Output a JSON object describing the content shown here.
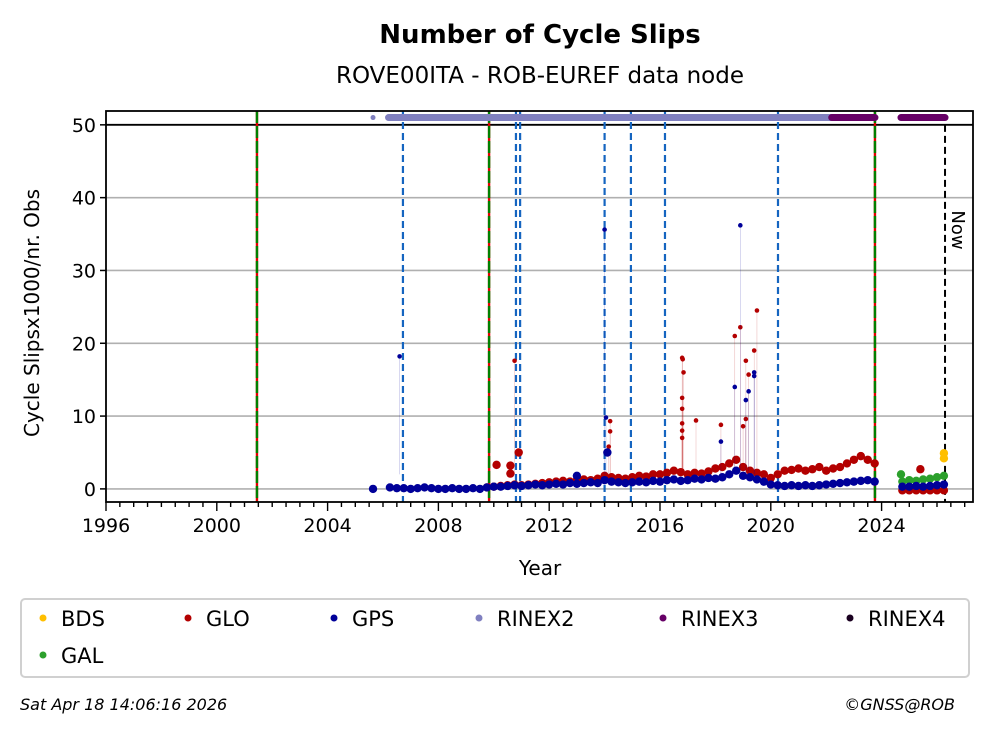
{
  "chart_data": {
    "type": "scatter",
    "title": "Number of Cycle Slips",
    "subtitle": "ROVE00ITA - ROB-EUREF data node",
    "xlabel": "Year",
    "ylabel": "Cycle Slipsx1000/nr. Obs",
    "xlim": [
      1996,
      2027.3
    ],
    "ylim": [
      -1.8,
      51.9
    ],
    "x_ticks": [
      1996,
      2000,
      2004,
      2008,
      2012,
      2016,
      2020,
      2024
    ],
    "y_ticks": [
      0,
      10,
      20,
      30,
      40,
      50
    ],
    "grid": "horizontal",
    "legend_placement": "bottom",
    "colors": {
      "BDS": "#ffbf00",
      "GLO": "#b30000",
      "GPS": "#000099",
      "RINEX2": "#8080c0",
      "RINEX3": "#660066",
      "RINEX4": "#1a0020",
      "GAL": "#2ca02c",
      "event_blue": "#1565c0",
      "event_green": "#008000",
      "event_red": "#e00000",
      "now": "#000000"
    },
    "legend": [
      "BDS",
      "GLO",
      "GPS",
      "RINEX2",
      "RINEX3",
      "RINEX4",
      "GAL"
    ],
    "now_label": "Now",
    "now_year": 2026.29,
    "receiver_antenna_changes": [
      2001.45,
      2009.83,
      2023.76
    ],
    "equipment_events": [
      2006.72,
      2010.8,
      2010.95,
      2014.0,
      2014.95,
      2016.18,
      2020.26
    ],
    "rinex_availability": [
      {
        "name": "RINEX2",
        "level": 51,
        "ranges": [
          [
            2005.64,
            2005.64
          ],
          [
            2006.2,
            2022.2
          ]
        ]
      },
      {
        "name": "RINEX3",
        "level": 51,
        "ranges": [
          [
            2022.2,
            2023.76
          ],
          [
            2024.7,
            2026.29
          ]
        ]
      }
    ],
    "series": [
      {
        "name": "GPS",
        "points": [
          [
            2006.25,
            0.2
          ],
          [
            2006.5,
            0.1
          ],
          [
            2006.75,
            0.1
          ],
          [
            2007.0,
            0.0
          ],
          [
            2007.25,
            0.1
          ],
          [
            2007.5,
            0.2
          ],
          [
            2007.75,
            0.1
          ],
          [
            2008.0,
            0.0
          ],
          [
            2008.25,
            0.0
          ],
          [
            2008.5,
            0.1
          ],
          [
            2008.75,
            0.0
          ],
          [
            2009.0,
            0.0
          ],
          [
            2009.25,
            0.1
          ],
          [
            2009.5,
            0.0
          ],
          [
            2009.75,
            0.2
          ],
          [
            2010.0,
            0.3
          ],
          [
            2010.25,
            0.3
          ],
          [
            2010.5,
            0.4
          ],
          [
            2010.75,
            0.5
          ],
          [
            2011.0,
            0.4
          ],
          [
            2011.25,
            0.5
          ],
          [
            2011.5,
            0.6
          ],
          [
            2011.75,
            0.5
          ],
          [
            2012.0,
            0.6
          ],
          [
            2012.25,
            0.7
          ],
          [
            2012.5,
            0.6
          ],
          [
            2012.75,
            0.8
          ],
          [
            2013.0,
            0.7
          ],
          [
            2013.25,
            0.8
          ],
          [
            2013.5,
            0.9
          ],
          [
            2013.75,
            0.8
          ],
          [
            2014.0,
            1.2
          ],
          [
            2014.25,
            1.0
          ],
          [
            2014.5,
            0.9
          ],
          [
            2014.75,
            0.8
          ],
          [
            2015.0,
            0.9
          ],
          [
            2015.25,
            1.0
          ],
          [
            2015.5,
            0.9
          ],
          [
            2015.75,
            1.1
          ],
          [
            2016.0,
            1.0
          ],
          [
            2016.25,
            1.2
          ],
          [
            2016.5,
            1.3
          ],
          [
            2016.75,
            1.1
          ],
          [
            2017.0,
            1.2
          ],
          [
            2017.25,
            1.4
          ],
          [
            2017.5,
            1.3
          ],
          [
            2017.75,
            1.5
          ],
          [
            2018.0,
            1.4
          ],
          [
            2018.25,
            1.6
          ],
          [
            2018.5,
            2.0
          ],
          [
            2018.75,
            2.5
          ],
          [
            2019.0,
            1.8
          ],
          [
            2019.25,
            1.6
          ],
          [
            2019.5,
            1.3
          ],
          [
            2019.75,
            1.0
          ],
          [
            2020.0,
            0.6
          ],
          [
            2020.25,
            0.5
          ],
          [
            2020.5,
            0.4
          ],
          [
            2020.75,
            0.5
          ],
          [
            2021.0,
            0.4
          ],
          [
            2021.25,
            0.5
          ],
          [
            2021.5,
            0.4
          ],
          [
            2021.75,
            0.5
          ],
          [
            2022.0,
            0.6
          ],
          [
            2022.25,
            0.7
          ],
          [
            2022.5,
            0.8
          ],
          [
            2022.75,
            0.9
          ],
          [
            2023.0,
            1.0
          ],
          [
            2023.25,
            1.1
          ],
          [
            2023.5,
            1.2
          ],
          [
            2023.75,
            1.0
          ],
          [
            2024.75,
            0.3
          ],
          [
            2025.0,
            0.3
          ],
          [
            2025.25,
            0.4
          ],
          [
            2025.5,
            0.3
          ],
          [
            2025.75,
            0.4
          ],
          [
            2026.0,
            0.5
          ],
          [
            2026.25,
            0.6
          ],
          [
            2005.64,
            0.0
          ],
          [
            2006.6,
            18.2
          ],
          [
            2013.0,
            1.8
          ],
          [
            2014.0,
            35.6
          ],
          [
            2014.05,
            9.8
          ],
          [
            2014.1,
            5.0
          ],
          [
            2018.2,
            6.5
          ],
          [
            2018.7,
            14.0
          ],
          [
            2018.9,
            36.2
          ],
          [
            2019.1,
            12.2
          ],
          [
            2019.2,
            13.4
          ],
          [
            2019.4,
            16.0
          ],
          [
            2019.4,
            15.5
          ]
        ]
      },
      {
        "name": "GLO",
        "points": [
          [
            2009.75,
            0.2
          ],
          [
            2010.0,
            0.3
          ],
          [
            2010.25,
            0.4
          ],
          [
            2010.5,
            0.5
          ],
          [
            2010.75,
            0.6
          ],
          [
            2011.0,
            0.5
          ],
          [
            2011.25,
            0.6
          ],
          [
            2011.5,
            0.7
          ],
          [
            2011.75,
            0.8
          ],
          [
            2012.0,
            0.9
          ],
          [
            2012.25,
            1.0
          ],
          [
            2012.5,
            1.1
          ],
          [
            2012.75,
            1.0
          ],
          [
            2013.0,
            1.2
          ],
          [
            2013.25,
            1.3
          ],
          [
            2013.5,
            1.2
          ],
          [
            2013.75,
            1.4
          ],
          [
            2014.0,
            1.8
          ],
          [
            2014.25,
            1.6
          ],
          [
            2014.5,
            1.5
          ],
          [
            2014.75,
            1.4
          ],
          [
            2015.0,
            1.6
          ],
          [
            2015.25,
            1.8
          ],
          [
            2015.5,
            1.7
          ],
          [
            2015.75,
            2.0
          ],
          [
            2016.0,
            2.0
          ],
          [
            2016.25,
            2.2
          ],
          [
            2016.5,
            2.5
          ],
          [
            2016.75,
            2.3
          ],
          [
            2017.0,
            2.0
          ],
          [
            2017.25,
            2.2
          ],
          [
            2017.5,
            2.1
          ],
          [
            2017.75,
            2.4
          ],
          [
            2018.0,
            2.8
          ],
          [
            2018.25,
            3.0
          ],
          [
            2018.5,
            3.5
          ],
          [
            2018.75,
            4.0
          ],
          [
            2019.0,
            3.0
          ],
          [
            2019.25,
            2.5
          ],
          [
            2019.5,
            2.2
          ],
          [
            2019.75,
            2.0
          ],
          [
            2020.0,
            1.5
          ],
          [
            2020.25,
            2.0
          ],
          [
            2020.5,
            2.5
          ],
          [
            2020.75,
            2.6
          ],
          [
            2021.0,
            2.8
          ],
          [
            2021.25,
            2.5
          ],
          [
            2021.5,
            2.7
          ],
          [
            2021.75,
            3.0
          ],
          [
            2022.0,
            2.5
          ],
          [
            2022.25,
            2.8
          ],
          [
            2022.5,
            3.0
          ],
          [
            2022.75,
            3.5
          ],
          [
            2023.0,
            4.0
          ],
          [
            2023.25,
            4.5
          ],
          [
            2023.5,
            4.0
          ],
          [
            2023.75,
            3.5
          ],
          [
            2024.75,
            -0.2
          ],
          [
            2025.0,
            -0.2
          ],
          [
            2025.25,
            -0.2
          ],
          [
            2025.5,
            -0.2
          ],
          [
            2025.75,
            -0.2
          ],
          [
            2026.0,
            -0.2
          ],
          [
            2026.25,
            -0.2
          ],
          [
            2010.1,
            3.3
          ],
          [
            2010.6,
            3.2
          ],
          [
            2010.6,
            2.1
          ],
          [
            2010.75,
            17.6
          ],
          [
            2010.9,
            5.0
          ],
          [
            2014.15,
            5.8
          ],
          [
            2014.2,
            7.9
          ],
          [
            2014.2,
            9.3
          ],
          [
            2016.8,
            18.0
          ],
          [
            2016.82,
            17.8
          ],
          [
            2016.85,
            16.0
          ],
          [
            2016.8,
            12.5
          ],
          [
            2016.8,
            11.0
          ],
          [
            2016.8,
            9.0
          ],
          [
            2016.8,
            8.0
          ],
          [
            2016.8,
            7.0
          ],
          [
            2017.3,
            9.4
          ],
          [
            2018.2,
            8.8
          ],
          [
            2018.7,
            21.0
          ],
          [
            2018.9,
            22.2
          ],
          [
            2019.0,
            8.6
          ],
          [
            2019.1,
            9.6
          ],
          [
            2019.1,
            17.6
          ],
          [
            2019.2,
            15.7
          ],
          [
            2019.4,
            19.0
          ],
          [
            2019.5,
            24.5
          ],
          [
            2025.4,
            2.7
          ]
        ]
      },
      {
        "name": "GAL",
        "points": [
          [
            2024.7,
            2.0
          ],
          [
            2024.75,
            1.0
          ],
          [
            2025.0,
            1.2
          ],
          [
            2025.25,
            1.1
          ],
          [
            2025.5,
            1.3
          ],
          [
            2025.75,
            1.4
          ],
          [
            2026.0,
            1.6
          ],
          [
            2026.25,
            1.8
          ]
        ]
      },
      {
        "name": "BDS",
        "points": [
          [
            2026.25,
            4.9
          ],
          [
            2026.25,
            4.2
          ]
        ]
      }
    ]
  },
  "footer": {
    "timestamp": "Sat Apr 18 14:06:16 2026",
    "copyright": "©GNSS@ROB"
  }
}
